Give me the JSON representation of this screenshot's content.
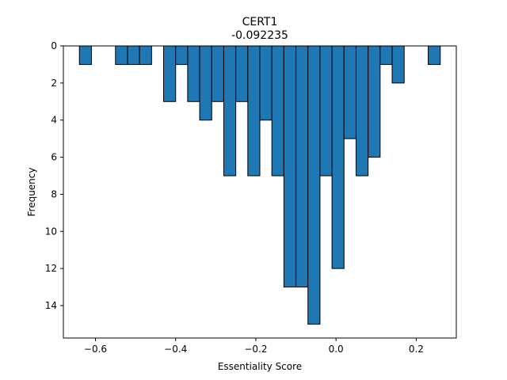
{
  "chart_data": {
    "type": "bar",
    "title": "CERT1",
    "subtitle": "-0.092235",
    "xlabel": "Essentiality Score",
    "ylabel": "Frequency",
    "xlim": [
      -0.68,
      0.3
    ],
    "ylim": [
      0,
      15.75
    ],
    "y_inverted": true,
    "bar_color": "#1f77b4",
    "edge_color": "#000000",
    "bin_width": 0.03,
    "x_ticks": [
      -0.6,
      -0.4,
      -0.2,
      0.0,
      0.2
    ],
    "x_tick_labels": [
      "−0.6",
      "−0.4",
      "−0.2",
      "0.0",
      "0.2"
    ],
    "y_ticks": [
      0,
      2,
      4,
      6,
      8,
      10,
      12,
      14
    ],
    "y_tick_labels": [
      "0",
      "2",
      "4",
      "6",
      "8",
      "10",
      "12",
      "14"
    ],
    "bins": [
      {
        "x": -0.625,
        "count": 1
      },
      {
        "x": -0.535,
        "count": 1
      },
      {
        "x": -0.505,
        "count": 1
      },
      {
        "x": -0.475,
        "count": 1
      },
      {
        "x": -0.415,
        "count": 3
      },
      {
        "x": -0.385,
        "count": 1
      },
      {
        "x": -0.355,
        "count": 3
      },
      {
        "x": -0.325,
        "count": 4
      },
      {
        "x": -0.295,
        "count": 3
      },
      {
        "x": -0.265,
        "count": 7
      },
      {
        "x": -0.235,
        "count": 3
      },
      {
        "x": -0.205,
        "count": 7
      },
      {
        "x": -0.175,
        "count": 4
      },
      {
        "x": -0.145,
        "count": 7
      },
      {
        "x": -0.115,
        "count": 13
      },
      {
        "x": -0.085,
        "count": 13
      },
      {
        "x": -0.055,
        "count": 15
      },
      {
        "x": -0.025,
        "count": 7
      },
      {
        "x": 0.005,
        "count": 12
      },
      {
        "x": 0.035,
        "count": 5
      },
      {
        "x": 0.065,
        "count": 7
      },
      {
        "x": 0.095,
        "count": 6
      },
      {
        "x": 0.125,
        "count": 1
      },
      {
        "x": 0.155,
        "count": 2
      },
      {
        "x": 0.245,
        "count": 1
      }
    ]
  }
}
